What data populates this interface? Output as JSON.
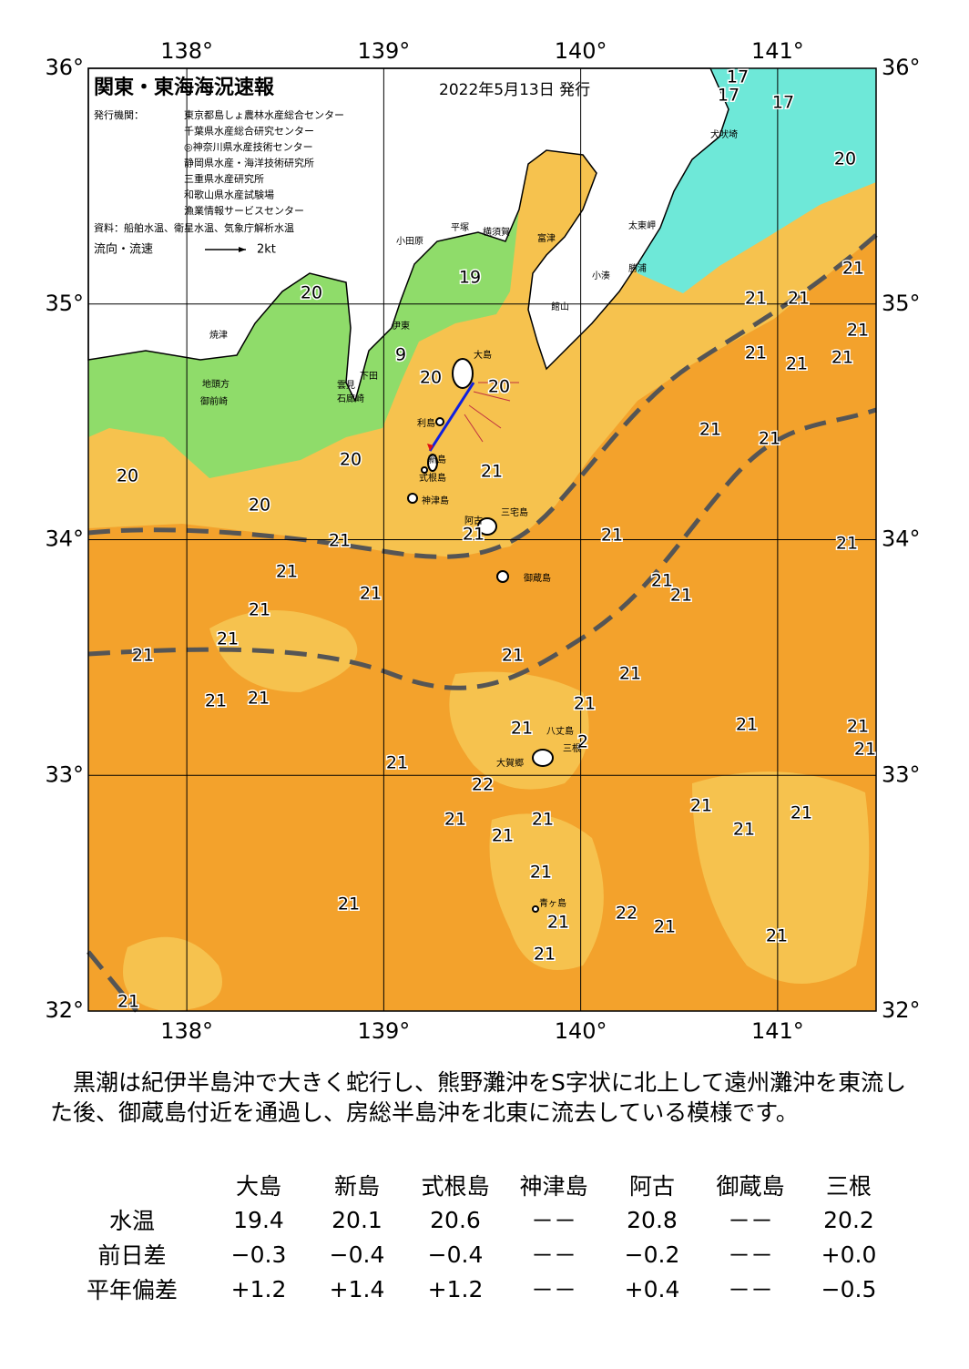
{
  "header": {
    "title": "関東・東海海況速報",
    "date": "2022年5月13日 発行",
    "issuer_label": "発行機関：",
    "issuers": [
      "東京都島しょ農林水産総合センター",
      "千葉県水産総合研究センター",
      "◎神奈川県水産技術センター",
      "静岡県水産・海洋技術研究所",
      "三重県水産研究所",
      "和歌山県水産試験場",
      "漁業情報サービスセンター"
    ],
    "sources": "資料：船舶水温、衛星水温、気象庁解析水温",
    "flow_label": "流向・流速",
    "flow_scale": "2kt"
  },
  "map": {
    "lon_range": [
      137.5,
      141.5
    ],
    "lat_range": [
      32,
      36
    ],
    "lon_ticks": [
      {
        "value": 138,
        "label": "138°"
      },
      {
        "value": 139,
        "label": "139°"
      },
      {
        "value": 140,
        "label": "140°"
      },
      {
        "value": 141,
        "label": "141°"
      }
    ],
    "lat_ticks": [
      {
        "value": 32,
        "label": "32°"
      },
      {
        "value": 33,
        "label": "33°"
      },
      {
        "value": 34,
        "label": "34°"
      },
      {
        "value": 35,
        "label": "35°"
      },
      {
        "value": 36,
        "label": "36°"
      }
    ],
    "temperatures": [
      17,
      17,
      17,
      20,
      21,
      21,
      21,
      21,
      21,
      21,
      21,
      20,
      19,
      9,
      20,
      20,
      21,
      21,
      20,
      20,
      21,
      20,
      21,
      21,
      21,
      21,
      21,
      21,
      21,
      21,
      21,
      21,
      21,
      21,
      21,
      21,
      21,
      21,
      21,
      21,
      21,
      21,
      2,
      21,
      22,
      21,
      21,
      21,
      21,
      21,
      21,
      21,
      22,
      21,
      21,
      21,
      21,
      21,
      21
    ],
    "places": [
      "犬吠埼",
      "太東岬",
      "勝浦",
      "小湊",
      "館山",
      "富津",
      "横須賀",
      "平塚",
      "小田原",
      "伊東",
      "大島",
      "下田",
      "雲見",
      "石廊崎",
      "焼津",
      "地頭方",
      "御前崎",
      "利島",
      "新島",
      "式根島",
      "神津島",
      "三宅島",
      "阿古",
      "御蔵島",
      "八丈島",
      "三根",
      "大賀郷",
      "青ヶ島"
    ]
  },
  "summary": "　黒潮は紀伊半島沖で大きく蛇行し、熊野灘沖をS字状に北上して遠州灘沖を東流した後、御蔵島付近を通過し、房総半島沖を北東に流去している模様です。",
  "table": {
    "columns": [
      "大島",
      "新島",
      "式根島",
      "神津島",
      "阿古",
      "御蔵島",
      "三根"
    ],
    "rows": [
      {
        "label": "水温",
        "values": [
          "19.4",
          "20.1",
          "20.6",
          "－－",
          "20.8",
          "－－",
          "20.2"
        ]
      },
      {
        "label": "前日差",
        "values": [
          "−0.3",
          "−0.4",
          "−0.4",
          "－－",
          "−0.2",
          "－－",
          "+0.0"
        ]
      },
      {
        "label": "平年偏差",
        "values": [
          "+1.2",
          "+1.4",
          "+1.2",
          "－－",
          "+0.4",
          "－－",
          "−0.5"
        ]
      }
    ]
  }
}
